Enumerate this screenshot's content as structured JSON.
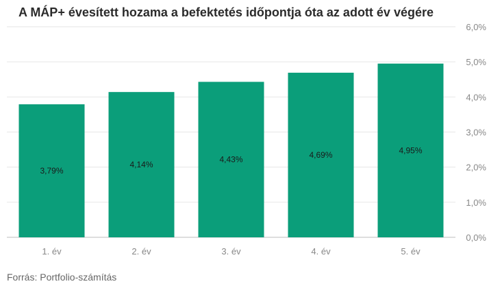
{
  "chart_data": {
    "type": "bar",
    "title": "A MÁP+ évesített hozama a befektetés időpontja óta az adott év végére",
    "categories": [
      "1. év",
      "2. év",
      "3. év",
      "4. év",
      "5. év"
    ],
    "values": [
      3.79,
      4.14,
      4.43,
      4.69,
      4.95
    ],
    "data_labels": [
      "3,79%",
      "4,14%",
      "4,43%",
      "4,69%",
      "4,95%"
    ],
    "ylim": [
      0,
      6
    ],
    "yticks": [
      0,
      1,
      2,
      3,
      4,
      5,
      6
    ],
    "ytick_labels": [
      "0,0%",
      "1,0%",
      "2,0%",
      "3,0%",
      "4,0%",
      "5,0%",
      "6,0%"
    ],
    "y_axis_position": "right",
    "grid": true,
    "bar_color": "#0b9e7a",
    "xlabel": "",
    "ylabel": ""
  },
  "source": "Forrás: Portfolio-számítás"
}
